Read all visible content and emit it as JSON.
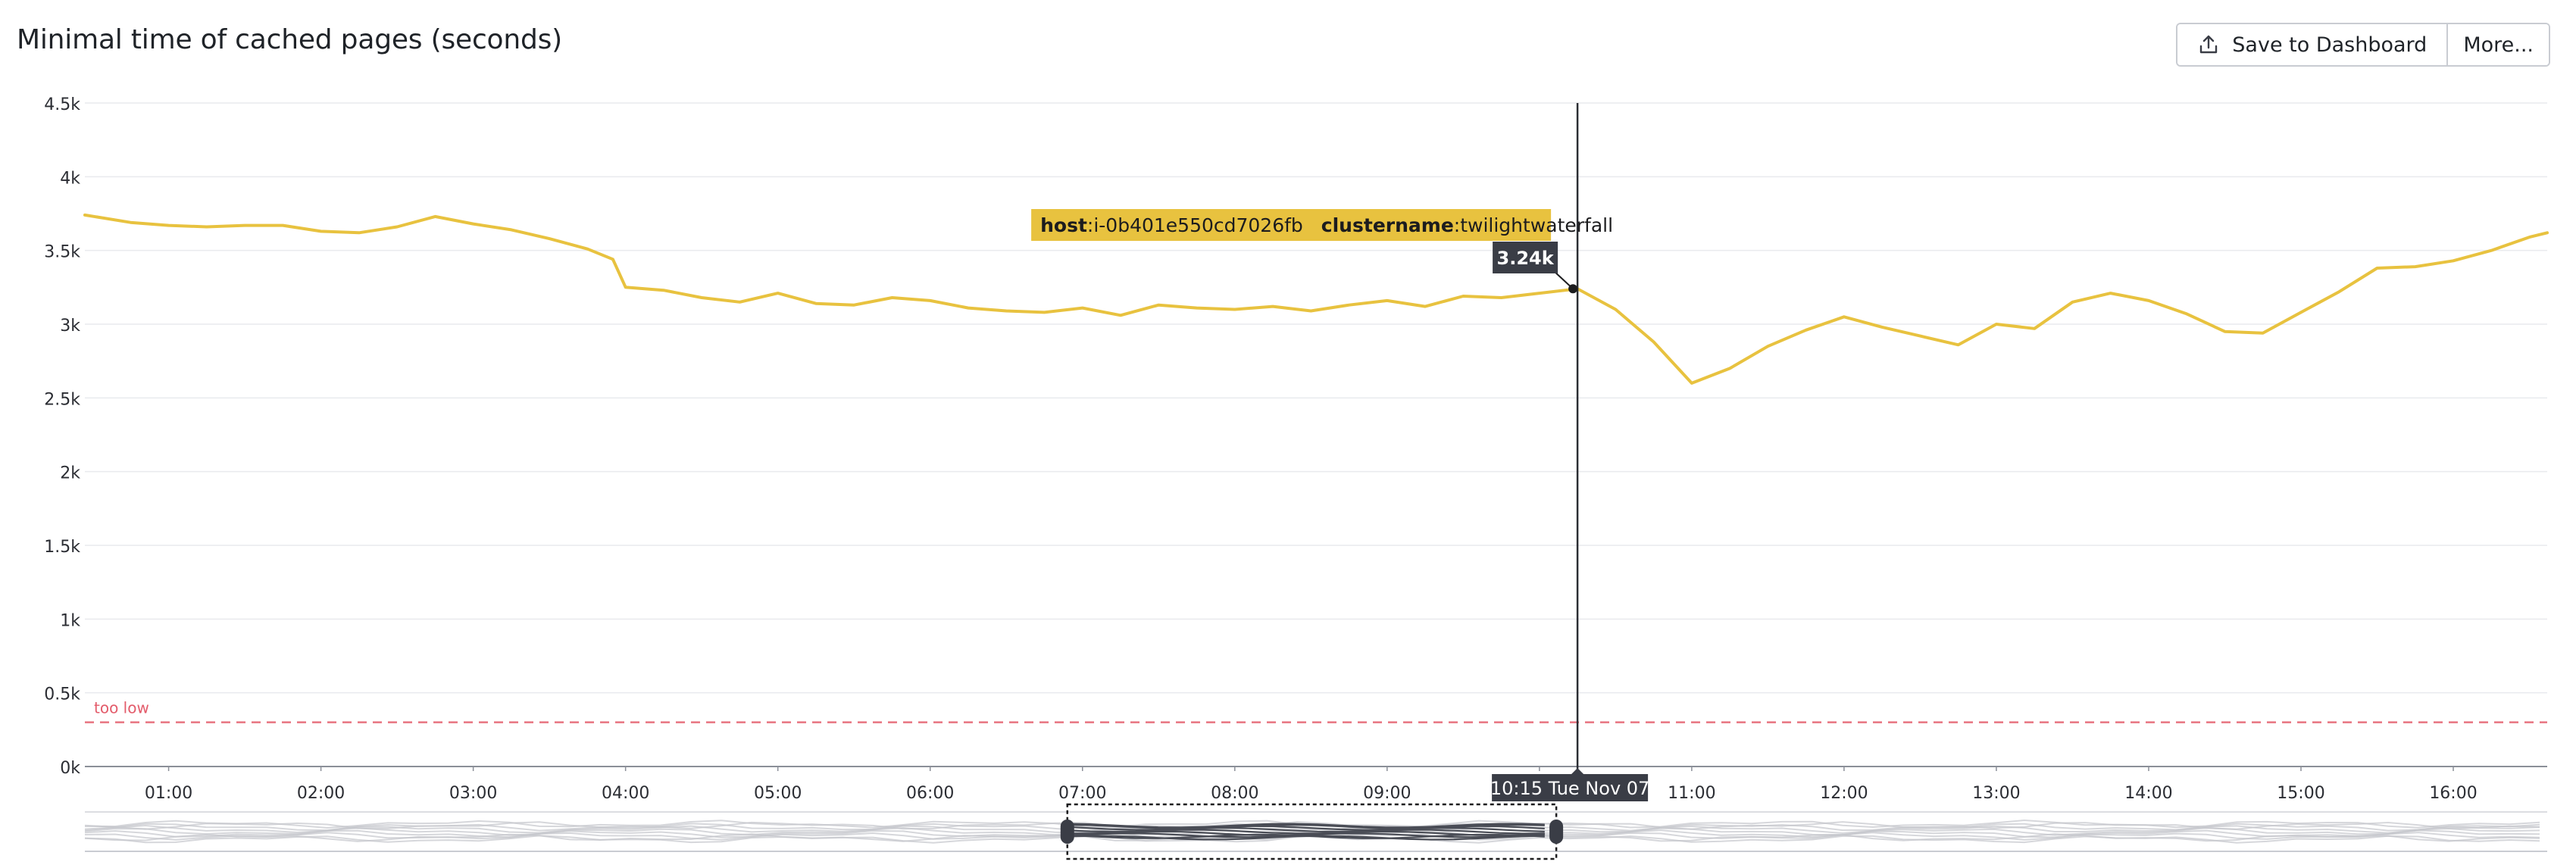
{
  "header": {
    "title": "Minimal time of cached pages (seconds)",
    "save_label": "Save to Dashboard",
    "more_label": "More..."
  },
  "icons": {
    "save": "upload-icon"
  },
  "colors": {
    "series": "#e8c23f",
    "threshold": "#e35c6b",
    "crosshair": "#2b2d33",
    "tooltip_bg": "#e8c23f",
    "dark_label_bg": "#3a3d46"
  },
  "chart_data": {
    "type": "line",
    "title": "Minimal time of cached pages (seconds)",
    "xlabel": "",
    "ylabel": "",
    "ylim": [
      0,
      4500
    ],
    "xlim": [
      "00:27",
      "16:37"
    ],
    "yticks": [
      0,
      500,
      1000,
      1500,
      2000,
      2500,
      3000,
      3500,
      4000,
      4500
    ],
    "ytick_labels": [
      "0k",
      "0.5k",
      "1k",
      "1.5k",
      "2k",
      "2.5k",
      "3k",
      "3.5k",
      "4k",
      "4.5k"
    ],
    "xtick_labels": [
      "01:00",
      "02:00",
      "03:00",
      "04:00",
      "05:00",
      "06:00",
      "07:00",
      "08:00",
      "09:00",
      "10:00",
      "11:00",
      "12:00",
      "13:00",
      "14:00",
      "15:00",
      "16:00"
    ],
    "grid": true,
    "series": [
      {
        "tags": [
          {
            "key": "host",
            "value": "i-0b401e550cd7026fb"
          },
          {
            "key": "clustername",
            "value": "twilightwaterfall"
          }
        ],
        "x": [
          "00:27",
          "00:45",
          "01:00",
          "01:15",
          "01:30",
          "01:45",
          "02:00",
          "02:15",
          "02:30",
          "02:45",
          "03:00",
          "03:15",
          "03:30",
          "03:45",
          "03:55",
          "04:00",
          "04:15",
          "04:30",
          "04:45",
          "05:00",
          "05:15",
          "05:30",
          "05:45",
          "06:00",
          "06:15",
          "06:30",
          "06:45",
          "07:00",
          "07:15",
          "07:30",
          "07:45",
          "08:00",
          "08:15",
          "08:30",
          "08:45",
          "09:00",
          "09:15",
          "09:30",
          "09:45",
          "10:00",
          "10:15",
          "10:30",
          "10:45",
          "11:00",
          "11:15",
          "11:30",
          "11:45",
          "12:00",
          "12:15",
          "12:30",
          "12:45",
          "13:00",
          "13:15",
          "13:30",
          "13:45",
          "14:00",
          "14:15",
          "14:30",
          "14:45",
          "15:00",
          "15:15",
          "15:30",
          "15:45",
          "16:00",
          "16:15",
          "16:30",
          "16:37"
        ],
        "y": [
          3740,
          3690,
          3670,
          3660,
          3670,
          3670,
          3630,
          3620,
          3660,
          3730,
          3680,
          3640,
          3580,
          3510,
          3440,
          3250,
          3230,
          3180,
          3150,
          3210,
          3140,
          3130,
          3180,
          3160,
          3110,
          3090,
          3080,
          3110,
          3060,
          3130,
          3110,
          3100,
          3120,
          3090,
          3130,
          3160,
          3120,
          3190,
          3180,
          3210,
          3240,
          3100,
          2880,
          2600,
          2700,
          2850,
          2960,
          3050,
          2980,
          2920,
          2860,
          3000,
          2970,
          3150,
          3210,
          3160,
          3070,
          2950,
          2940,
          3080,
          3220,
          3380,
          3390,
          3430,
          3500,
          3590,
          3620
        ]
      }
    ],
    "hover": {
      "time_label": "10:15 Tue Nov 07",
      "value_label": "3.24k",
      "x": "10:15",
      "y": 3240
    },
    "markers": [
      {
        "label": "too low",
        "value": 300,
        "style": "dashed"
      }
    ],
    "navigator": {
      "visible_range": [
        "07:00",
        "10:15"
      ]
    }
  }
}
